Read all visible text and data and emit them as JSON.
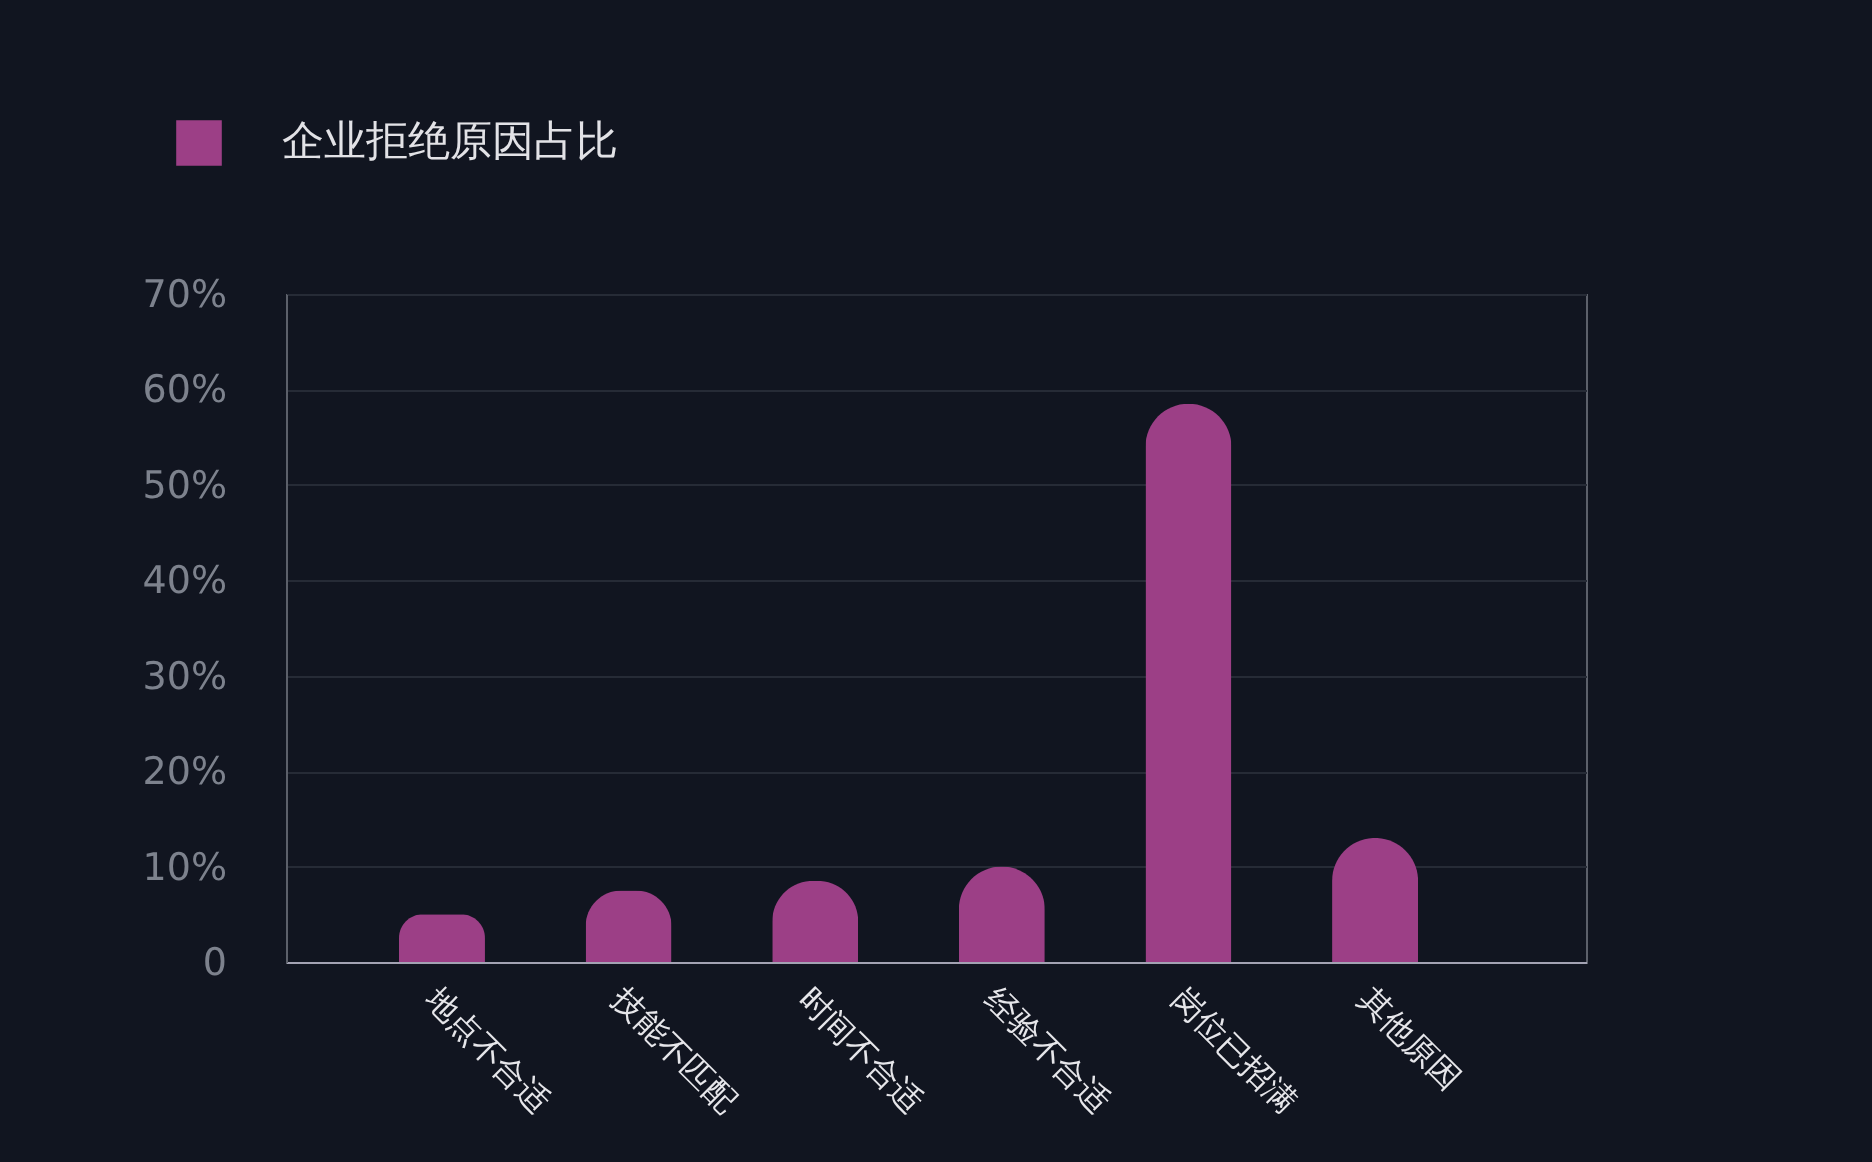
{
  "chart_data": {
    "type": "bar",
    "categories": [
      "地点不合适",
      "技能不匹配",
      "时间不合适",
      "经验不合适",
      "岗位已招满",
      "其他原因"
    ],
    "series": [
      {
        "name": "企业拒绝原因占比",
        "color": "#9c3f86",
        "values": [
          5,
          7.5,
          8.5,
          10,
          58.5,
          13
        ]
      }
    ],
    "ylim": [
      0,
      70
    ],
    "yticks": [
      {
        "value": 0,
        "label": "0"
      },
      {
        "value": 10,
        "label": "10%"
      },
      {
        "value": 20,
        "label": "20%"
      },
      {
        "value": 30,
        "label": "30%"
      },
      {
        "value": 40,
        "label": "40%"
      },
      {
        "value": 50,
        "label": "50%"
      },
      {
        "value": 60,
        "label": "60%"
      },
      {
        "value": 70,
        "label": "70%"
      }
    ],
    "grid": "y",
    "legend": "top left"
  }
}
